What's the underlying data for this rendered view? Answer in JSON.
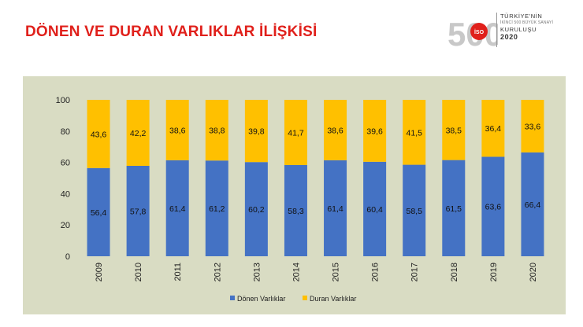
{
  "page": {
    "title": "DÖNEN VE DURAN VARLIKLAR İLİŞKİSİ"
  },
  "logo": {
    "line1": "TÜRKİYE'NİN",
    "line2": "İKİNCİ 500 BÜYÜK SANAYİ",
    "line3": "KURULUŞU",
    "line4": "2020",
    "big_digits": "500",
    "emblem_text": "İSO"
  },
  "colors": {
    "title": "#e0201b",
    "donen": "#4472c4",
    "duran": "#ffc000",
    "panel": "#d9dcc3"
  },
  "chart_data": {
    "type": "bar",
    "stacked": true,
    "categories": [
      "2009",
      "2010",
      "2011",
      "2012",
      "2013",
      "2014",
      "2015",
      "2016",
      "2017",
      "2018",
      "2019",
      "2020"
    ],
    "series": [
      {
        "name": "Dönen Varlıklar",
        "color": "#4472c4",
        "values": [
          56.4,
          57.8,
          61.4,
          61.2,
          60.2,
          58.3,
          61.4,
          60.4,
          58.5,
          61.5,
          63.6,
          66.4
        ],
        "labels": [
          "56,4",
          "57,8",
          "61,4",
          "61,2",
          "60,2",
          "58,3",
          "61,4",
          "60,4",
          "58,5",
          "61,5",
          "63,6",
          "66,4"
        ]
      },
      {
        "name": "Duran Varlıklar",
        "color": "#ffc000",
        "values": [
          43.6,
          42.2,
          38.6,
          38.8,
          39.8,
          41.7,
          38.6,
          39.6,
          41.5,
          38.5,
          36.4,
          33.6
        ],
        "labels": [
          "43,6",
          "42,2",
          "38,6",
          "38,8",
          "39,8",
          "41,7",
          "38,6",
          "39,6",
          "41,5",
          "38,5",
          "36,4",
          "33,6"
        ]
      }
    ],
    "ylim": [
      0,
      100
    ],
    "yticks": [
      "0",
      "20",
      "40",
      "60",
      "80",
      "100"
    ],
    "grid": false,
    "legend": "bottom"
  }
}
